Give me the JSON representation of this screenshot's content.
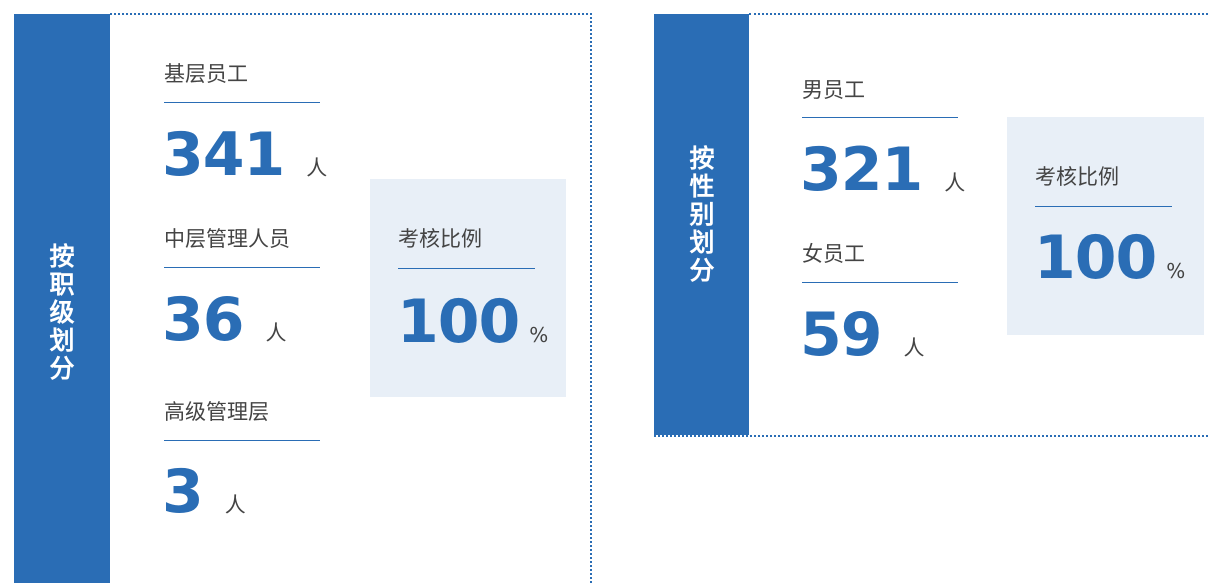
{
  "sections": [
    {
      "title": "按职级划分",
      "groups": [
        {
          "label": "基层员工",
          "value": 341,
          "unit": "人"
        },
        {
          "label": "中层管理人员",
          "value": 36,
          "unit": "人"
        },
        {
          "label": "高级管理层",
          "value": 3,
          "unit": "人"
        }
      ],
      "ratio": {
        "label": "考核比例",
        "value": 100,
        "unit": "%"
      }
    },
    {
      "title": "按性别划分",
      "groups": [
        {
          "label": "男员工",
          "value": 321,
          "unit": "人"
        },
        {
          "label": "女员工",
          "value": 59,
          "unit": "人"
        }
      ],
      "ratio": {
        "label": "考核比例",
        "value": 100,
        "unit": "%"
      }
    }
  ]
}
